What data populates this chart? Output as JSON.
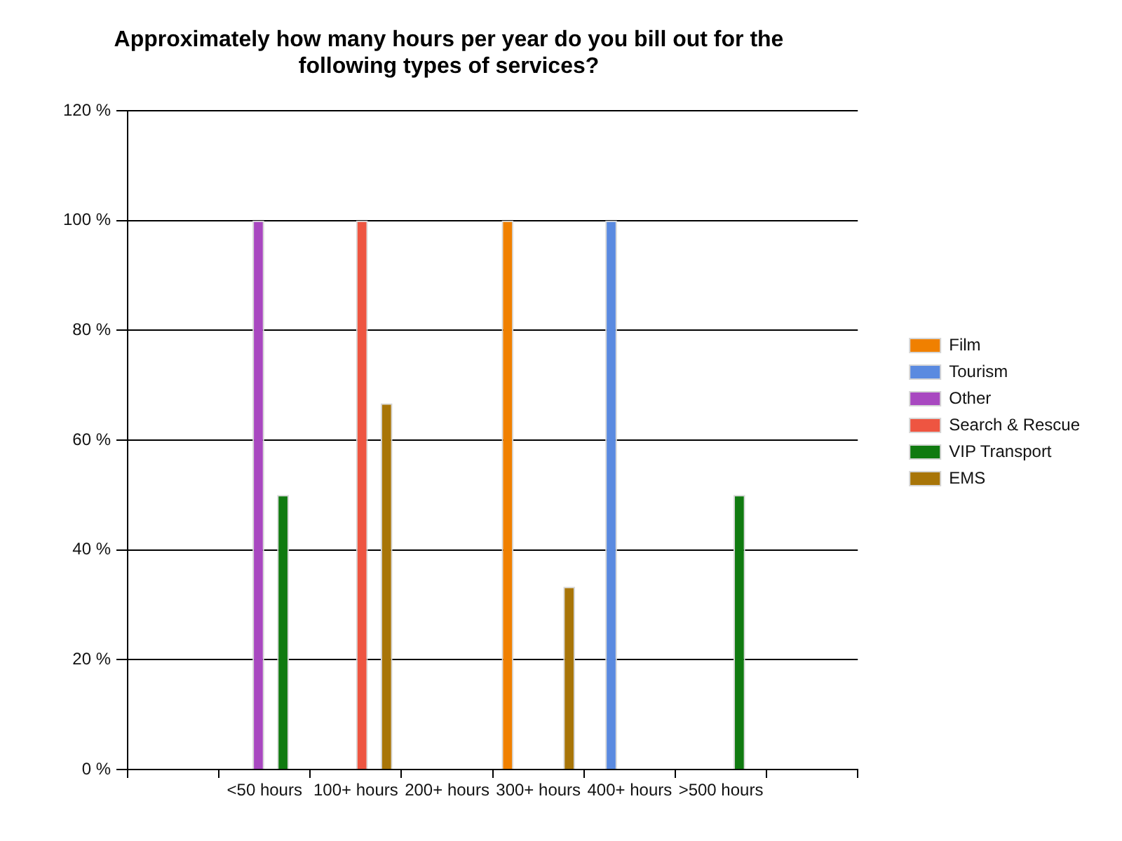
{
  "chart_data": {
    "type": "bar",
    "title": "Approximately how many hours per year do you bill out for the following types of services?",
    "categories": [
      "<50 hours",
      "100+ hours",
      "200+ hours",
      "300+ hours",
      "400+ hours",
      ">500 hours"
    ],
    "series": [
      {
        "name": "Film",
        "color": "#f08000",
        "values": [
          0,
          0,
          0,
          100,
          0,
          0
        ]
      },
      {
        "name": "Tourism",
        "color": "#5a8ae0",
        "values": [
          0,
          0,
          0,
          0,
          100,
          0
        ]
      },
      {
        "name": "Other",
        "color": "#a848c0",
        "values": [
          100,
          0,
          0,
          0,
          0,
          0
        ]
      },
      {
        "name": "Search & Rescue",
        "color": "#ee5541",
        "values": [
          0,
          100,
          0,
          0,
          0,
          0
        ]
      },
      {
        "name": "VIP Transport",
        "color": "#107a10",
        "values": [
          50,
          0,
          0,
          0,
          0,
          50
        ]
      },
      {
        "name": "EMS",
        "color": "#a87508",
        "values": [
          0,
          66.7,
          0,
          33.3,
          0,
          0
        ]
      }
    ],
    "ylim": [
      0,
      120
    ],
    "yticks": [
      {
        "value": 0,
        "label": "0 %"
      },
      {
        "value": 20,
        "label": "20 %"
      },
      {
        "value": 40,
        "label": "40 %"
      },
      {
        "value": 60,
        "label": "60 %"
      },
      {
        "value": 80,
        "label": "80 %"
      },
      {
        "value": 100,
        "label": "100 %"
      },
      {
        "value": 120,
        "label": "120 %"
      }
    ],
    "grid": "y",
    "legend": "right"
  }
}
